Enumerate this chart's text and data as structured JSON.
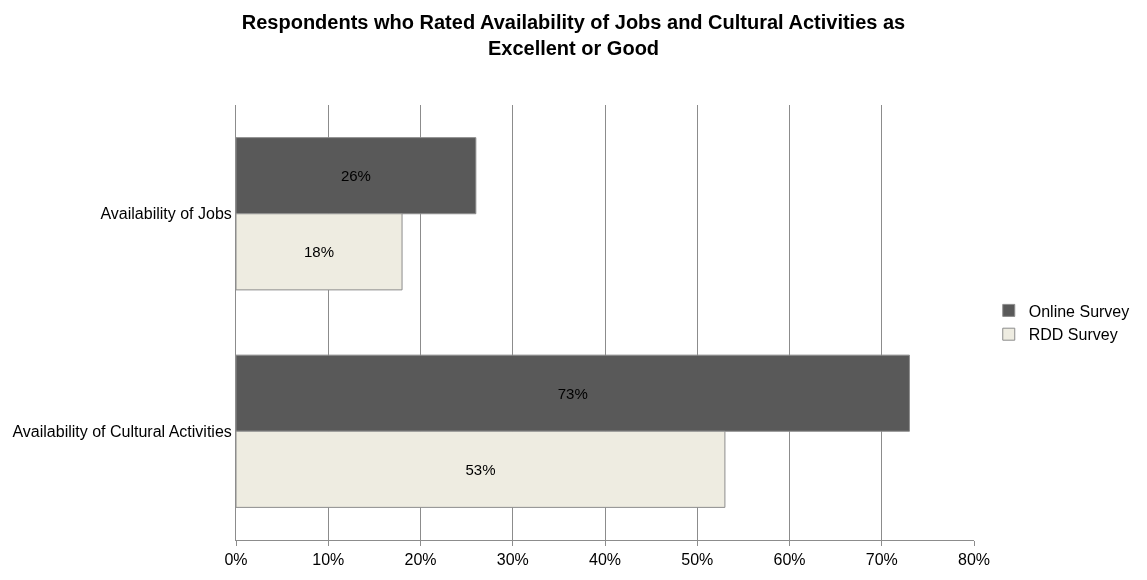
{
  "chart_data": {
    "type": "bar",
    "orientation": "horizontal",
    "title": "Respondents who Rated Availability of Jobs and Cultural Activities as Excellent or Good",
    "categories": [
      "Availability of Jobs",
      "Availability of Cultural Activities"
    ],
    "series": [
      {
        "name": "Online Survey",
        "color": "#595959",
        "values": [
          26,
          73
        ],
        "value_labels": [
          "26%",
          "73%"
        ]
      },
      {
        "name": "RDD Survey",
        "color": "#eeece1",
        "values": [
          18,
          53
        ],
        "value_labels": [
          "18%",
          "53%"
        ]
      }
    ],
    "xlim": [
      0,
      80
    ],
    "xticks": [
      {
        "value": 0,
        "label": "0%"
      },
      {
        "value": 10,
        "label": "10%"
      },
      {
        "value": 20,
        "label": "20%"
      },
      {
        "value": 30,
        "label": "30%"
      },
      {
        "value": 40,
        "label": "40%"
      },
      {
        "value": 50,
        "label": "50%"
      },
      {
        "value": 60,
        "label": "60%"
      },
      {
        "value": 70,
        "label": "70%"
      },
      {
        "value": 80,
        "label": "80%"
      }
    ],
    "grid": "x",
    "legend": "right"
  }
}
